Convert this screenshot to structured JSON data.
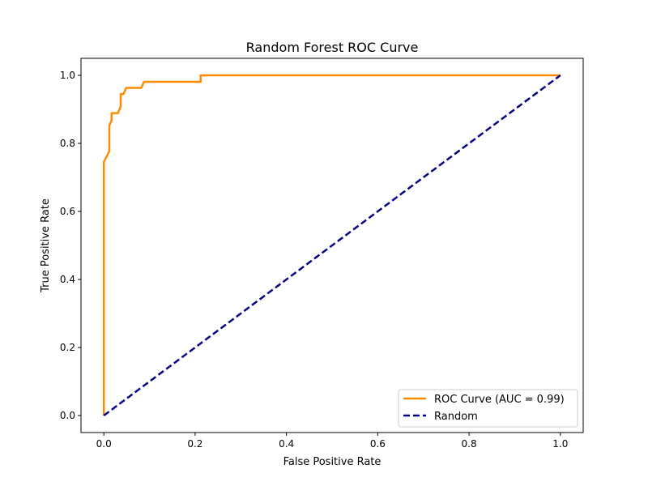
{
  "chart_data": {
    "type": "line",
    "title": "Random Forest ROC Curve",
    "xlabel": "False Positive Rate",
    "ylabel": "True Positive Rate",
    "xlim": [
      -0.05,
      1.05
    ],
    "ylim": [
      -0.05,
      1.05
    ],
    "xticks": [
      "0.0",
      "0.2",
      "0.4",
      "0.6",
      "0.8",
      "1.0"
    ],
    "yticks": [
      "0.0",
      "0.2",
      "0.4",
      "0.6",
      "0.8",
      "1.0"
    ],
    "grid": false,
    "legend_position": "bottom-right",
    "series": [
      {
        "name": "ROC Curve (AUC = 0.99)",
        "color": "#ff8c00",
        "dash": "solid",
        "x": [
          0,
          0,
          0.012,
          0.012,
          0.017,
          0.017,
          0.031,
          0.037,
          0.037,
          0.043,
          0.049,
          0.082,
          0.088,
          0.212,
          0.212,
          1.0
        ],
        "y": [
          0,
          0.745,
          0.777,
          0.852,
          0.868,
          0.889,
          0.889,
          0.908,
          0.945,
          0.945,
          0.963,
          0.963,
          0.981,
          0.981,
          1.0,
          1.0
        ]
      },
      {
        "name": "Random",
        "color": "#000080",
        "dash": "dashed",
        "x": [
          0,
          1
        ],
        "y": [
          0,
          1
        ]
      }
    ]
  }
}
